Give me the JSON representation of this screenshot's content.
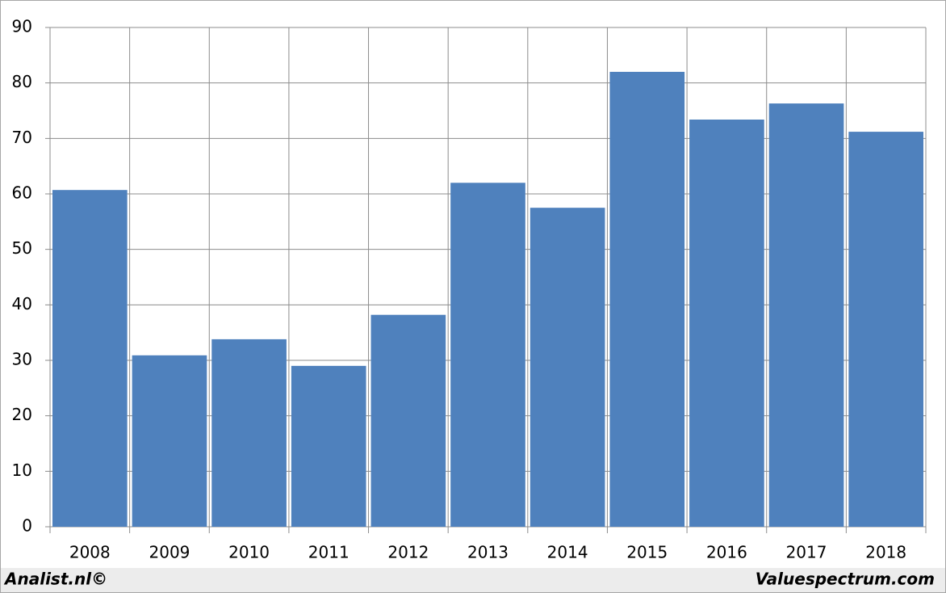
{
  "chart_data": {
    "type": "bar",
    "categories": [
      "2008",
      "2009",
      "2010",
      "2011",
      "2012",
      "2013",
      "2014",
      "2015",
      "2016",
      "2017",
      "2018"
    ],
    "values": [
      60.7,
      30.9,
      33.8,
      29.0,
      38.2,
      62.0,
      57.5,
      82.0,
      73.4,
      76.3,
      71.2
    ],
    "color": "#4f81bd",
    "ylim": [
      0,
      90
    ],
    "yticks": [
      0,
      10,
      20,
      30,
      40,
      50,
      60,
      70,
      80,
      90
    ],
    "grid": true,
    "credits": [
      "Analist.nl©",
      "Valuespectrum.com"
    ]
  }
}
